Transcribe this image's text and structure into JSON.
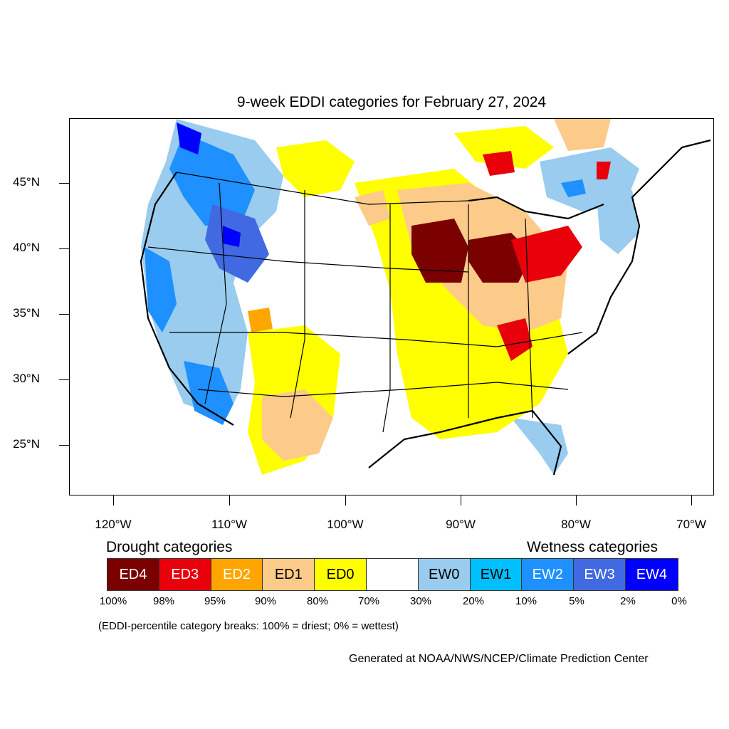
{
  "title": "9-week EDDI categories for February 27, 2024",
  "lat_labels": [
    "45°N",
    "40°N",
    "35°N",
    "30°N",
    "25°N"
  ],
  "lon_labels": [
    "120°W",
    "110°W",
    "100°W",
    "90°W",
    "80°W",
    "70°W"
  ],
  "legend": {
    "drought_heading": "Drought categories",
    "wetness_heading": "Wetness categories",
    "boxes": [
      {
        "label": "ED4",
        "color": "#7b0000",
        "text_color": "#ffffff"
      },
      {
        "label": "ED3",
        "color": "#e8000b",
        "text_color": "#ffffff"
      },
      {
        "label": "ED2",
        "color": "#ffa500",
        "text_color": "#ffffff"
      },
      {
        "label": "ED1",
        "color": "#fccb8a",
        "text_color": "#000000"
      },
      {
        "label": "ED0",
        "color": "#ffff00",
        "text_color": "#000000"
      },
      {
        "label": "",
        "color": "#ffffff",
        "text_color": "#000000"
      },
      {
        "label": "EW0",
        "color": "#99ccee",
        "text_color": "#000000"
      },
      {
        "label": "EW1",
        "color": "#00bfff",
        "text_color": "#000000"
      },
      {
        "label": "EW2",
        "color": "#1e90ff",
        "text_color": "#ffffff"
      },
      {
        "label": "EW3",
        "color": "#4169e1",
        "text_color": "#ffffff"
      },
      {
        "label": "EW4",
        "color": "#0000ff",
        "text_color": "#ffffff"
      }
    ],
    "percentiles": [
      "100%",
      "98%",
      "95%",
      "90%",
      "80%",
      "70%",
      "30%",
      "20%",
      "10%",
      "5%",
      "2%",
      "0%"
    ]
  },
  "note": "(EDDI-percentile category breaks: 100% = driest; 0% = wettest)",
  "credit": "Generated at NOAA/NWS/NCEP/Climate Prediction Center"
}
